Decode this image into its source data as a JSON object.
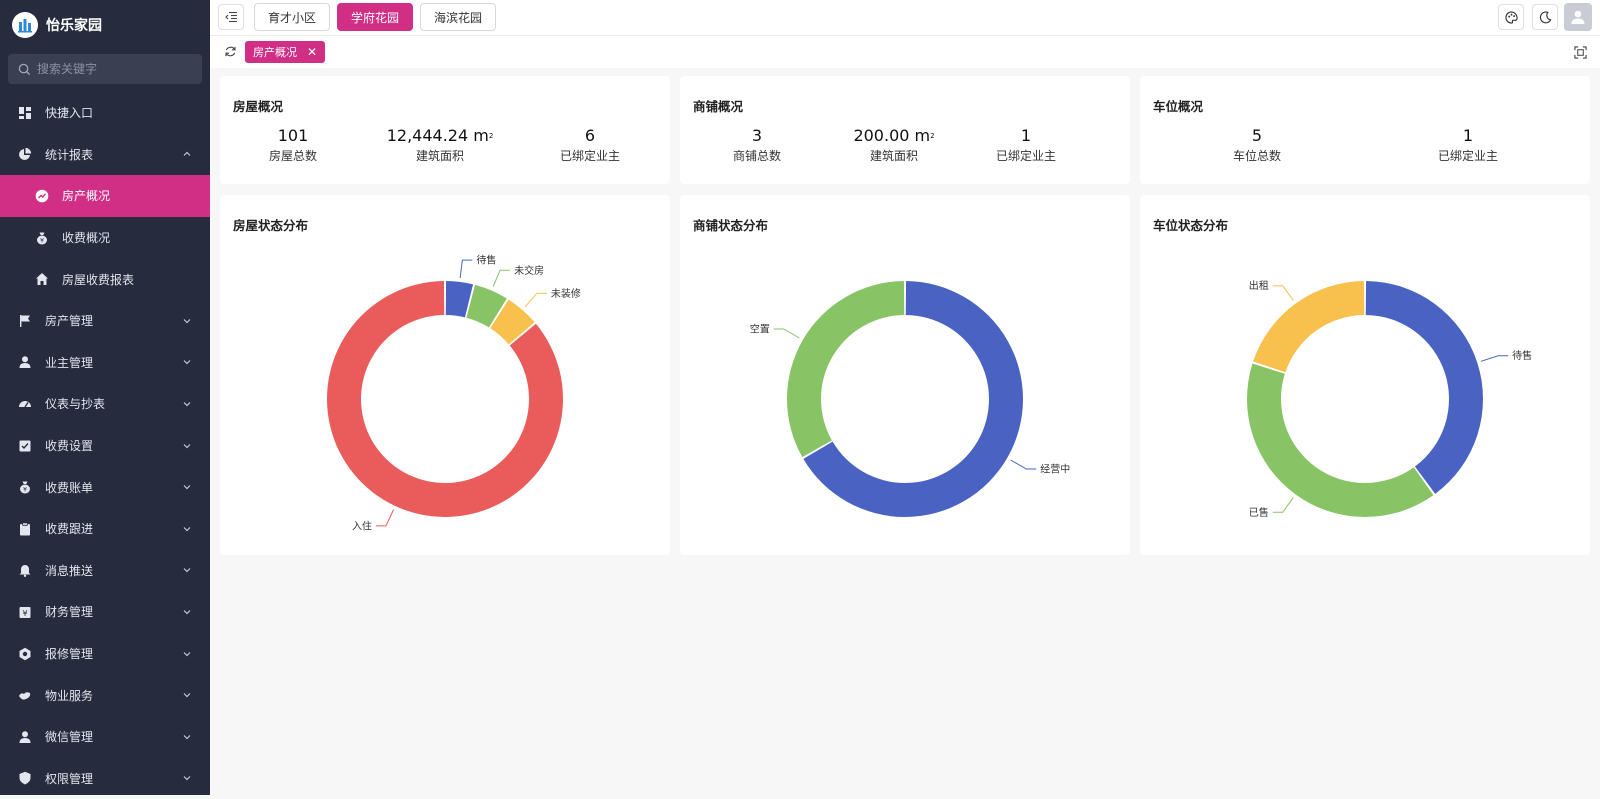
{
  "app": {
    "title": "怡乐家园"
  },
  "search": {
    "placeholder": "搜索关键字"
  },
  "menu": [
    {
      "label": "快捷入口",
      "icon": "dashboard-icon"
    },
    {
      "label": "统计报表",
      "icon": "pie-chart-icon"
    },
    {
      "label": "房产概况",
      "icon": "trend-icon"
    },
    {
      "label": "收费概况",
      "icon": "money-bag-icon"
    },
    {
      "label": "房屋收费报表",
      "icon": "home-icon"
    },
    {
      "label": "房产管理",
      "icon": "flag-icon"
    },
    {
      "label": "业主管理",
      "icon": "user-icon"
    },
    {
      "label": "仪表与抄表",
      "icon": "gauge-icon"
    },
    {
      "label": "收费设置",
      "icon": "checklist-icon"
    },
    {
      "label": "收费账单",
      "icon": "money-bag-icon"
    },
    {
      "label": "收费跟进",
      "icon": "clipboard-icon"
    },
    {
      "label": "消息推送",
      "icon": "bell-icon"
    },
    {
      "label": "财务管理",
      "icon": "finance-icon"
    },
    {
      "label": "报修管理",
      "icon": "repair-icon"
    },
    {
      "label": "物业服务",
      "icon": "service-icon"
    },
    {
      "label": "微信管理",
      "icon": "user-icon"
    },
    {
      "label": "权限管理",
      "icon": "shield-icon"
    }
  ],
  "communities": [
    "育才小区",
    "学府花园",
    "海滨花园"
  ],
  "active_community": "学府花园",
  "tags": {
    "current": "房产概况"
  },
  "overview": {
    "house": {
      "title": "房屋概况",
      "stats": [
        {
          "value": "101",
          "label": "房屋总数"
        },
        {
          "value": "12,444.24 m",
          "label": "建筑面积",
          "unit_sup": "2"
        },
        {
          "value": "6",
          "label": "已绑定业主"
        }
      ]
    },
    "shop": {
      "title": "商铺概况",
      "stats": [
        {
          "value": "3",
          "label": "商铺总数"
        },
        {
          "value": "200.00 m",
          "label": "建筑面积",
          "unit_sup": "2"
        },
        {
          "value": "1",
          "label": "已绑定业主"
        }
      ]
    },
    "parking": {
      "title": "车位概况",
      "stats": [
        {
          "value": "5",
          "label": "车位总数"
        },
        {
          "value": "1",
          "label": "已绑定业主"
        }
      ]
    }
  },
  "chart_data": [
    {
      "type": "pie",
      "title": "房屋状态分布",
      "donut": true,
      "slices": [
        {
          "name": "待售",
          "value": 4,
          "color": "#4a63c2"
        },
        {
          "name": "未交房",
          "value": 5,
          "color": "#88c366"
        },
        {
          "name": "未装修",
          "value": 5,
          "color": "#f8c04c"
        },
        {
          "name": "入住",
          "value": 87,
          "color": "#ea5b5b"
        }
      ]
    },
    {
      "type": "pie",
      "title": "商铺状态分布",
      "donut": true,
      "slices": [
        {
          "name": "经营中",
          "value": 2,
          "color": "#4a63c2"
        },
        {
          "name": "空置",
          "value": 1,
          "color": "#88c366"
        }
      ]
    },
    {
      "type": "pie",
      "title": "车位状态分布",
      "donut": true,
      "slices": [
        {
          "name": "待售",
          "value": 2,
          "color": "#4a63c2"
        },
        {
          "name": "已售",
          "value": 2,
          "color": "#88c366"
        },
        {
          "name": "出租",
          "value": 1,
          "color": "#f8c04c"
        }
      ]
    }
  ]
}
